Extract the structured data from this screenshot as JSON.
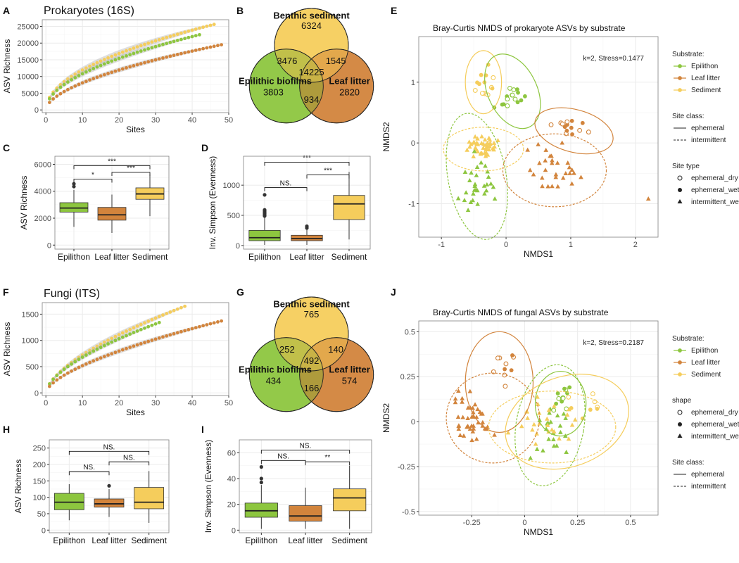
{
  "palette": {
    "epilithon": "#8dc63f",
    "leaf_litter": "#d2843c",
    "sediment": "#f5cd5c",
    "grid": "#ebebeb",
    "panel_border": "#7f7f7f"
  },
  "chart_data": [
    {
      "id": "A",
      "label": "A",
      "type": "scatter",
      "title": "Prokaryotes (16S)",
      "xlabel": "Sites",
      "ylabel": "ASV Richness",
      "xlim": [
        -1,
        50
      ],
      "ylim": [
        -800,
        27000
      ],
      "xticks": [
        0,
        10,
        20,
        30,
        40,
        50
      ],
      "yticks": [
        0,
        5000,
        10000,
        15000,
        20000,
        25000
      ],
      "grid": true,
      "curve": true,
      "series": [
        {
          "key": "sediment",
          "n": 46,
          "max": 25600,
          "exp": 0.5
        },
        {
          "key": "epilithon",
          "n": 42,
          "max": 22500,
          "exp": 0.51
        },
        {
          "key": "leaf_litter",
          "n": 48,
          "max": 19500,
          "exp": 0.56
        }
      ]
    },
    {
      "id": "B",
      "label": "B",
      "type": "venn",
      "sets": [
        "Benthic sediment",
        "Epilithic biofilms",
        "Leaf litter"
      ],
      "regions": {
        "a": "6324",
        "b": "3803",
        "c": "2820",
        "ab": "3476",
        "ac": "1545",
        "bc": "934",
        "abc": "14225"
      }
    },
    {
      "id": "C",
      "label": "C",
      "type": "box",
      "xlabel": "",
      "ylabel": "ASV Richness",
      "ylim": [
        -300,
        6600
      ],
      "yticks": [
        0,
        2000,
        4000,
        6000
      ],
      "categories": [
        "Epilithon",
        "Leaf litter",
        "Sediment"
      ],
      "boxes": [
        {
          "key": "epilithon",
          "lo": 1350,
          "q1": 2450,
          "med": 2750,
          "q3": 3150,
          "hi": 4100,
          "out": [
            4350,
            4550
          ]
        },
        {
          "key": "leaf_litter",
          "lo": 900,
          "q1": 1850,
          "med": 2250,
          "q3": 2800,
          "hi": 3750,
          "out": []
        },
        {
          "key": "sediment",
          "lo": 2150,
          "q1": 3400,
          "med": 3800,
          "q3": 4250,
          "hi": 5250,
          "out": []
        }
      ],
      "brackets": [
        {
          "from": 0,
          "to": 1,
          "y": 4900,
          "label": "*"
        },
        {
          "from": 1,
          "to": 2,
          "y": 5400,
          "label": "***"
        },
        {
          "from": 0,
          "to": 2,
          "y": 5900,
          "label": "***"
        }
      ]
    },
    {
      "id": "D",
      "label": "D",
      "type": "box",
      "xlabel": "",
      "ylabel": "Inv. Simpson (Evenness)",
      "ylim": [
        -60,
        1480
      ],
      "yticks": [
        0,
        500,
        1000
      ],
      "categories": [
        "Epilithon",
        "Leaf litter",
        "Sediment"
      ],
      "boxes": [
        {
          "key": "epilithon",
          "lo": 10,
          "q1": 80,
          "med": 130,
          "q3": 250,
          "hi": 470,
          "out": [
            490,
            510,
            530,
            550,
            570,
            590,
            840
          ]
        },
        {
          "key": "leaf_litter",
          "lo": 10,
          "q1": 80,
          "med": 115,
          "q3": 170,
          "hi": 260,
          "out": [
            290,
            320
          ]
        },
        {
          "key": "sediment",
          "lo": 100,
          "q1": 430,
          "med": 690,
          "q3": 830,
          "hi": 1220,
          "out": []
        }
      ],
      "brackets": [
        {
          "from": 0,
          "to": 1,
          "y": 960,
          "label": "NS."
        },
        {
          "from": 1,
          "to": 2,
          "y": 1170,
          "label": "***"
        },
        {
          "from": 0,
          "to": 2,
          "y": 1380,
          "label": "***"
        }
      ]
    },
    {
      "id": "E",
      "label": "E",
      "type": "scatter",
      "title": "Bray-Curtis NMDS of prokaryote ASVs by substrate",
      "xlabel": "NMDS1",
      "ylabel": "NMDS2",
      "xlim": [
        -1.35,
        2.35
      ],
      "ylim": [
        -1.55,
        1.75
      ],
      "xticks": [
        -1,
        0,
        1,
        2
      ],
      "yticks": [
        -1,
        0,
        1
      ],
      "grid": true,
      "annotation": "k=2, Stress=0.1477",
      "legend_position": "right",
      "legend": {
        "substrate_title": "Substrate:",
        "substrate": [
          "Epilithon",
          "Leaf litter",
          "Sediment"
        ],
        "siteclass_title": "Site class:",
        "siteclass": [
          "ephemeral",
          "intermittent"
        ],
        "shape_title": "Site type",
        "shape": [
          "ephemeral_dry",
          "ephemeral_wet",
          "intermittent_wet"
        ]
      },
      "groups": [
        {
          "key": "sediment",
          "cx": -0.35,
          "cy": -0.05,
          "sx": 0.22,
          "sy": 0.14,
          "n": 44,
          "shape": "tri"
        },
        {
          "key": "sediment",
          "cx": -0.33,
          "cy": 1.05,
          "sx": 0.12,
          "sy": 0.2,
          "n": 14,
          "shape": "mix"
        },
        {
          "key": "epilithon",
          "cx": -0.45,
          "cy": -0.65,
          "sx": 0.23,
          "sy": 0.32,
          "n": 30,
          "shape": "tri"
        },
        {
          "key": "epilithon",
          "cx": 0.1,
          "cy": 0.75,
          "sx": 0.22,
          "sy": 0.18,
          "n": 16,
          "shape": "mix"
        },
        {
          "key": "leaf_litter",
          "cx": 0.72,
          "cy": -0.45,
          "sx": 0.32,
          "sy": 0.3,
          "n": 30,
          "shape": "tri"
        },
        {
          "key": "leaf_litter",
          "cx": 0.95,
          "cy": 0.25,
          "sx": 0.25,
          "sy": 0.12,
          "n": 14,
          "shape": "mix"
        }
      ],
      "ellipses": [
        {
          "key": "sediment",
          "cx": -0.35,
          "cy": 1.0,
          "rx": 0.28,
          "ry": 0.52,
          "rot": 0,
          "dash": false
        },
        {
          "key": "sediment",
          "cx": -0.35,
          "cy": -0.1,
          "rx": 0.62,
          "ry": 0.36,
          "rot": 0,
          "dash": true
        },
        {
          "key": "epilithon",
          "cx": 0.1,
          "cy": 0.85,
          "rx": 0.38,
          "ry": 0.65,
          "rot": -25,
          "dash": false
        },
        {
          "key": "epilithon",
          "cx": -0.45,
          "cy": -0.55,
          "rx": 0.45,
          "ry": 1.05,
          "rot": -10,
          "dash": true
        },
        {
          "key": "leaf_litter",
          "cx": 1.05,
          "cy": 0.2,
          "rx": 0.62,
          "ry": 0.35,
          "rot": 15,
          "dash": false
        },
        {
          "key": "leaf_litter",
          "cx": 0.75,
          "cy": -0.45,
          "rx": 0.8,
          "ry": 0.6,
          "rot": 0,
          "dash": true
        }
      ],
      "extra_points": [
        {
          "key": "leaf_litter",
          "x": 2.2,
          "y": -0.92,
          "shape": "tri"
        }
      ]
    },
    {
      "id": "F",
      "label": "F",
      "type": "scatter",
      "title": "Fungi (ITS)",
      "xlabel": "Sites",
      "ylabel": "ASV Richness",
      "xlim": [
        -1,
        50
      ],
      "ylim": [
        -50,
        1720
      ],
      "xticks": [
        0,
        10,
        20,
        30,
        40,
        50
      ],
      "yticks": [
        0,
        500,
        1000,
        1500
      ],
      "grid": true,
      "curve": true,
      "series": [
        {
          "key": "sediment",
          "n": 38,
          "max": 1650,
          "exp": 0.62
        },
        {
          "key": "epilithon",
          "n": 31,
          "max": 1340,
          "exp": 0.6
        },
        {
          "key": "leaf_litter",
          "n": 48,
          "max": 1370,
          "exp": 0.62
        }
      ]
    },
    {
      "id": "G",
      "label": "G",
      "type": "venn",
      "sets": [
        "Benthic sediment",
        "Epilithic biofilms",
        "Leaf litter"
      ],
      "regions": {
        "a": "765",
        "b": "434",
        "c": "574",
        "ab": "252",
        "ac": "140",
        "bc": "166",
        "abc": "492"
      }
    },
    {
      "id": "H",
      "label": "H",
      "type": "box",
      "xlabel": "",
      "ylabel": "ASV Richness",
      "ylim": [
        -8,
        275
      ],
      "yticks": [
        0,
        50,
        100,
        150,
        200,
        250
      ],
      "categories": [
        "Epilithon",
        "Leaf litter",
        "Sediment"
      ],
      "boxes": [
        {
          "key": "epilithon",
          "lo": 30,
          "q1": 62,
          "med": 85,
          "q3": 112,
          "hi": 140,
          "out": []
        },
        {
          "key": "leaf_litter",
          "lo": 40,
          "q1": 70,
          "med": 80,
          "q3": 95,
          "hi": 125,
          "out": [
            135
          ]
        },
        {
          "key": "sediment",
          "lo": 22,
          "q1": 65,
          "med": 85,
          "q3": 130,
          "hi": 180,
          "out": []
        }
      ],
      "brackets": [
        {
          "from": 0,
          "to": 1,
          "y": 178,
          "label": "NS."
        },
        {
          "from": 1,
          "to": 2,
          "y": 208,
          "label": "NS."
        },
        {
          "from": 0,
          "to": 2,
          "y": 240,
          "label": "NS."
        }
      ]
    },
    {
      "id": "I",
      "label": "I",
      "type": "box",
      "xlabel": "",
      "ylabel": "Inv. Simpson (Evenness)",
      "ylim": [
        -2,
        70
      ],
      "yticks": [
        0,
        20,
        40,
        60
      ],
      "categories": [
        "Epilithon",
        "Leaf litter",
        "Sediment"
      ],
      "boxes": [
        {
          "key": "epilithon",
          "lo": 1,
          "q1": 10,
          "med": 15,
          "q3": 21,
          "hi": 35,
          "out": [
            37,
            40,
            49
          ]
        },
        {
          "key": "leaf_litter",
          "lo": 1,
          "q1": 7,
          "med": 11,
          "q3": 19,
          "hi": 33,
          "out": []
        },
        {
          "key": "sediment",
          "lo": 1,
          "q1": 15,
          "med": 25,
          "q3": 32,
          "hi": 50,
          "out": []
        }
      ],
      "brackets": [
        {
          "from": 0,
          "to": 1,
          "y": 54,
          "label": "NS."
        },
        {
          "from": 1,
          "to": 2,
          "y": 53,
          "label": "**"
        },
        {
          "from": 0,
          "to": 2,
          "y": 62,
          "label": "NS."
        }
      ]
    },
    {
      "id": "J",
      "label": "J",
      "type": "scatter",
      "title": "Bray-Curtis NMDS of fungal ASVs by substrate",
      "xlabel": "NMDS1",
      "ylabel": "NMDS2",
      "xlim": [
        -0.5,
        0.63
      ],
      "ylim": [
        -0.52,
        0.56
      ],
      "xticks": [
        -0.25,
        0.0,
        0.25,
        0.5
      ],
      "yticks": [
        -0.5,
        -0.25,
        0.0,
        0.25,
        0.5
      ],
      "grid": true,
      "annotation": "k=2, Stress=0.2187",
      "legend_position": "right",
      "legend": {
        "substrate_title": "Substrate:",
        "substrate": [
          "Epilithon",
          "Leaf litter",
          "Sediment"
        ],
        "shape_title": "shape",
        "shape": [
          "ephemeral_dry",
          "ephemeral_wet",
          "intermittent_wet"
        ],
        "siteclass_title": "Site class:",
        "siteclass": [
          "ephemeral",
          "intermittent"
        ]
      },
      "groups": [
        {
          "key": "leaf_litter",
          "cx": -0.25,
          "cy": 0.02,
          "sx": 0.08,
          "sy": 0.13,
          "n": 42,
          "shape": "tri"
        },
        {
          "key": "leaf_litter",
          "cx": -0.1,
          "cy": 0.3,
          "sx": 0.06,
          "sy": 0.07,
          "n": 10,
          "shape": "mix"
        },
        {
          "key": "epilithon",
          "cx": 0.12,
          "cy": -0.05,
          "sx": 0.07,
          "sy": 0.12,
          "n": 22,
          "shape": "tri"
        },
        {
          "key": "epilithon",
          "cx": 0.17,
          "cy": 0.15,
          "sx": 0.05,
          "sy": 0.07,
          "n": 12,
          "shape": "mix"
        },
        {
          "key": "sediment",
          "cx": 0.1,
          "cy": -0.02,
          "sx": 0.14,
          "sy": 0.12,
          "n": 26,
          "shape": "tri"
        },
        {
          "key": "sediment",
          "cx": 0.3,
          "cy": 0.1,
          "sx": 0.1,
          "sy": 0.06,
          "n": 8,
          "shape": "mix"
        }
      ],
      "ellipses": [
        {
          "key": "leaf_litter",
          "cx": -0.12,
          "cy": 0.22,
          "rx": 0.16,
          "ry": 0.28,
          "rot": 0,
          "dash": false
        },
        {
          "key": "leaf_litter",
          "cx": -0.15,
          "cy": 0.02,
          "rx": 0.22,
          "ry": 0.25,
          "rot": 0,
          "dash": true
        },
        {
          "key": "epilithon",
          "cx": 0.17,
          "cy": 0.1,
          "rx": 0.12,
          "ry": 0.18,
          "rot": 0,
          "dash": false
        },
        {
          "key": "epilithon",
          "cx": 0.12,
          "cy": -0.02,
          "rx": 0.16,
          "ry": 0.34,
          "rot": 10,
          "dash": true
        },
        {
          "key": "sediment",
          "cx": 0.2,
          "cy": 0.0,
          "rx": 0.3,
          "ry": 0.25,
          "rot": -20,
          "dash": false
        },
        {
          "key": "sediment",
          "cx": 0.13,
          "cy": -0.03,
          "rx": 0.3,
          "ry": 0.2,
          "rot": 0,
          "dash": true
        }
      ],
      "extra_points": []
    }
  ]
}
